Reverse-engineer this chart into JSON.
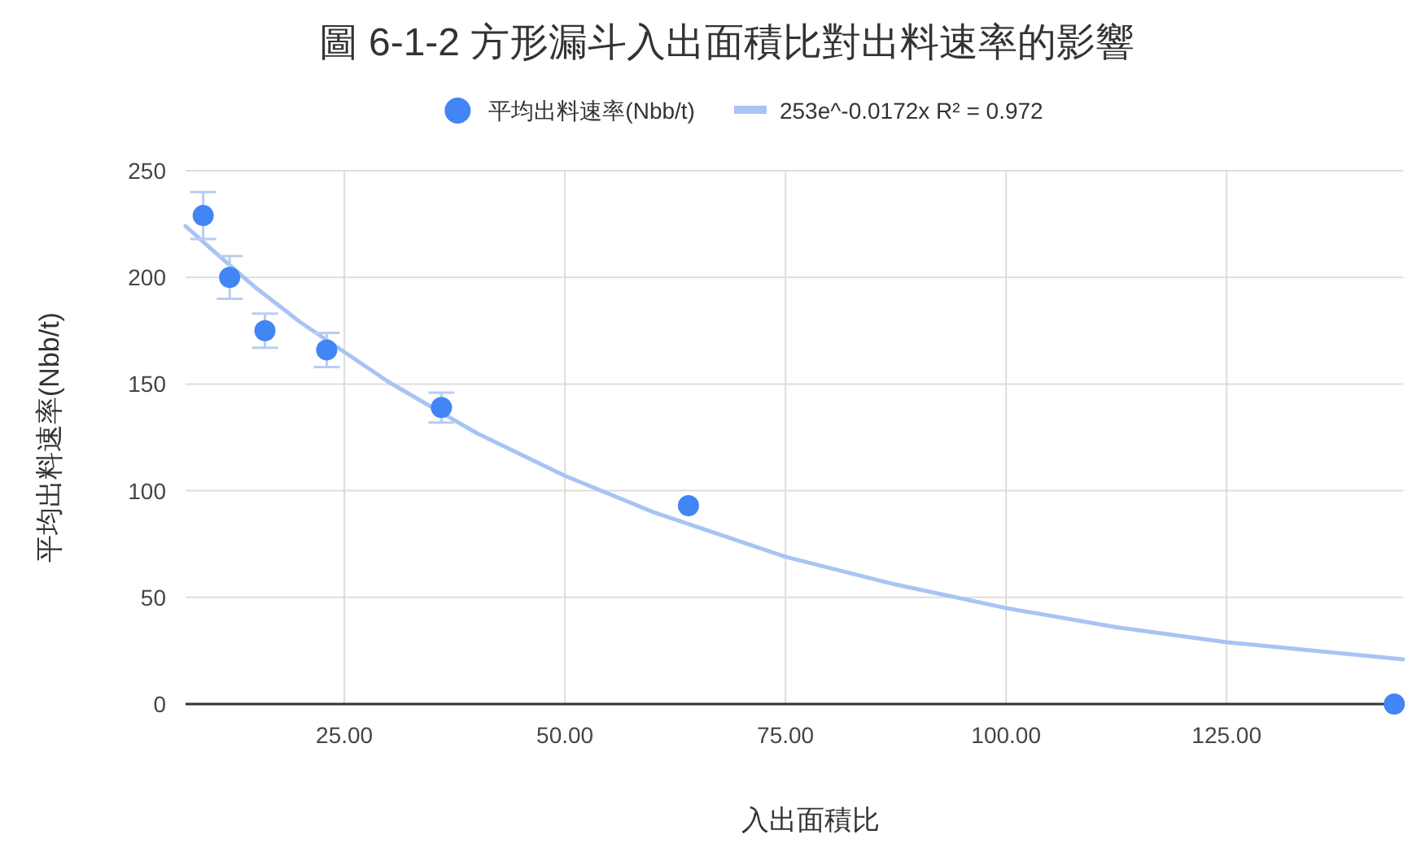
{
  "chart_data": {
    "type": "scatter",
    "title": "圖 6-1-2 方形漏斗入出面積比對出料速率的影響",
    "xlabel": "入出面積比",
    "ylabel": "平均出料速率(Nbb/t)",
    "series": [
      {
        "name": "平均出料速率(Nbb/t)",
        "color": "#4285f4",
        "marker": "circle",
        "x": [
          9,
          12,
          16,
          23,
          36,
          64,
          144
        ],
        "values": [
          229,
          200,
          175,
          166,
          139,
          93,
          0
        ],
        "errors": [
          11,
          10,
          8,
          8,
          7,
          null,
          null
        ]
      },
      {
        "name": "253e^-0.0172x R² = 0.972",
        "type": "line",
        "color": "#a8c4f4",
        "x": [
          7,
          10,
          15,
          20,
          25,
          30,
          40,
          50,
          60,
          75,
          87.5,
          100,
          112.5,
          125,
          135,
          145
        ],
        "values": [
          224,
          213,
          195,
          179,
          165,
          151,
          127,
          107,
          90,
          69,
          56,
          45,
          36,
          29,
          25,
          21
        ]
      }
    ],
    "xlim": [
      7,
      145
    ],
    "ylim": [
      0,
      250
    ],
    "xticks": [
      {
        "value": 25,
        "label": "25.00"
      },
      {
        "value": 50,
        "label": "50.00"
      },
      {
        "value": 75,
        "label": "75.00"
      },
      {
        "value": 100,
        "label": "100.00"
      },
      {
        "value": 125,
        "label": "125.00"
      }
    ],
    "yticks": [
      0,
      50,
      100,
      150,
      200,
      250
    ],
    "grid": true,
    "legend": "top"
  }
}
